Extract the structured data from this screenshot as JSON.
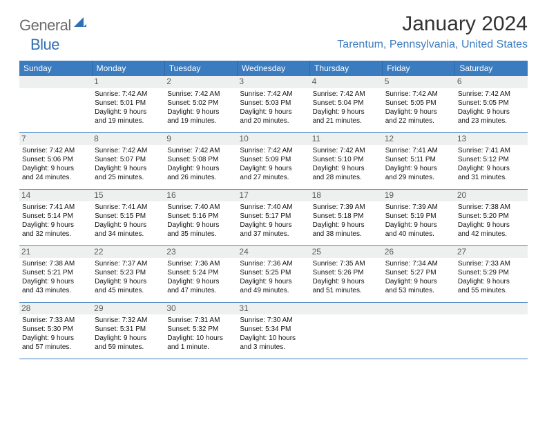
{
  "logo": {
    "part1": "General",
    "part2": "Blue"
  },
  "title": "January 2024",
  "location": "Tarentum, Pennsylvania, United States",
  "headers": [
    "Sunday",
    "Monday",
    "Tuesday",
    "Wednesday",
    "Thursday",
    "Friday",
    "Saturday"
  ],
  "colors": {
    "header_bg": "#3b7bbf",
    "header_text": "#ffffff",
    "accent": "#3b7bbf",
    "logo_gray": "#6b6b6b",
    "logo_blue": "#2f6fb3",
    "daynum_bg": "#eef0f0",
    "text": "#000000"
  },
  "weeks": [
    [
      null,
      {
        "n": "1",
        "r": "Sunrise: 7:42 AM",
        "s": "Sunset: 5:01 PM",
        "d1": "Daylight: 9 hours",
        "d2": "and 19 minutes."
      },
      {
        "n": "2",
        "r": "Sunrise: 7:42 AM",
        "s": "Sunset: 5:02 PM",
        "d1": "Daylight: 9 hours",
        "d2": "and 19 minutes."
      },
      {
        "n": "3",
        "r": "Sunrise: 7:42 AM",
        "s": "Sunset: 5:03 PM",
        "d1": "Daylight: 9 hours",
        "d2": "and 20 minutes."
      },
      {
        "n": "4",
        "r": "Sunrise: 7:42 AM",
        "s": "Sunset: 5:04 PM",
        "d1": "Daylight: 9 hours",
        "d2": "and 21 minutes."
      },
      {
        "n": "5",
        "r": "Sunrise: 7:42 AM",
        "s": "Sunset: 5:05 PM",
        "d1": "Daylight: 9 hours",
        "d2": "and 22 minutes."
      },
      {
        "n": "6",
        "r": "Sunrise: 7:42 AM",
        "s": "Sunset: 5:05 PM",
        "d1": "Daylight: 9 hours",
        "d2": "and 23 minutes."
      }
    ],
    [
      {
        "n": "7",
        "r": "Sunrise: 7:42 AM",
        "s": "Sunset: 5:06 PM",
        "d1": "Daylight: 9 hours",
        "d2": "and 24 minutes."
      },
      {
        "n": "8",
        "r": "Sunrise: 7:42 AM",
        "s": "Sunset: 5:07 PM",
        "d1": "Daylight: 9 hours",
        "d2": "and 25 minutes."
      },
      {
        "n": "9",
        "r": "Sunrise: 7:42 AM",
        "s": "Sunset: 5:08 PM",
        "d1": "Daylight: 9 hours",
        "d2": "and 26 minutes."
      },
      {
        "n": "10",
        "r": "Sunrise: 7:42 AM",
        "s": "Sunset: 5:09 PM",
        "d1": "Daylight: 9 hours",
        "d2": "and 27 minutes."
      },
      {
        "n": "11",
        "r": "Sunrise: 7:42 AM",
        "s": "Sunset: 5:10 PM",
        "d1": "Daylight: 9 hours",
        "d2": "and 28 minutes."
      },
      {
        "n": "12",
        "r": "Sunrise: 7:41 AM",
        "s": "Sunset: 5:11 PM",
        "d1": "Daylight: 9 hours",
        "d2": "and 29 minutes."
      },
      {
        "n": "13",
        "r": "Sunrise: 7:41 AM",
        "s": "Sunset: 5:12 PM",
        "d1": "Daylight: 9 hours",
        "d2": "and 31 minutes."
      }
    ],
    [
      {
        "n": "14",
        "r": "Sunrise: 7:41 AM",
        "s": "Sunset: 5:14 PM",
        "d1": "Daylight: 9 hours",
        "d2": "and 32 minutes."
      },
      {
        "n": "15",
        "r": "Sunrise: 7:41 AM",
        "s": "Sunset: 5:15 PM",
        "d1": "Daylight: 9 hours",
        "d2": "and 34 minutes."
      },
      {
        "n": "16",
        "r": "Sunrise: 7:40 AM",
        "s": "Sunset: 5:16 PM",
        "d1": "Daylight: 9 hours",
        "d2": "and 35 minutes."
      },
      {
        "n": "17",
        "r": "Sunrise: 7:40 AM",
        "s": "Sunset: 5:17 PM",
        "d1": "Daylight: 9 hours",
        "d2": "and 37 minutes."
      },
      {
        "n": "18",
        "r": "Sunrise: 7:39 AM",
        "s": "Sunset: 5:18 PM",
        "d1": "Daylight: 9 hours",
        "d2": "and 38 minutes."
      },
      {
        "n": "19",
        "r": "Sunrise: 7:39 AM",
        "s": "Sunset: 5:19 PM",
        "d1": "Daylight: 9 hours",
        "d2": "and 40 minutes."
      },
      {
        "n": "20",
        "r": "Sunrise: 7:38 AM",
        "s": "Sunset: 5:20 PM",
        "d1": "Daylight: 9 hours",
        "d2": "and 42 minutes."
      }
    ],
    [
      {
        "n": "21",
        "r": "Sunrise: 7:38 AM",
        "s": "Sunset: 5:21 PM",
        "d1": "Daylight: 9 hours",
        "d2": "and 43 minutes."
      },
      {
        "n": "22",
        "r": "Sunrise: 7:37 AM",
        "s": "Sunset: 5:23 PM",
        "d1": "Daylight: 9 hours",
        "d2": "and 45 minutes."
      },
      {
        "n": "23",
        "r": "Sunrise: 7:36 AM",
        "s": "Sunset: 5:24 PM",
        "d1": "Daylight: 9 hours",
        "d2": "and 47 minutes."
      },
      {
        "n": "24",
        "r": "Sunrise: 7:36 AM",
        "s": "Sunset: 5:25 PM",
        "d1": "Daylight: 9 hours",
        "d2": "and 49 minutes."
      },
      {
        "n": "25",
        "r": "Sunrise: 7:35 AM",
        "s": "Sunset: 5:26 PM",
        "d1": "Daylight: 9 hours",
        "d2": "and 51 minutes."
      },
      {
        "n": "26",
        "r": "Sunrise: 7:34 AM",
        "s": "Sunset: 5:27 PM",
        "d1": "Daylight: 9 hours",
        "d2": "and 53 minutes."
      },
      {
        "n": "27",
        "r": "Sunrise: 7:33 AM",
        "s": "Sunset: 5:29 PM",
        "d1": "Daylight: 9 hours",
        "d2": "and 55 minutes."
      }
    ],
    [
      {
        "n": "28",
        "r": "Sunrise: 7:33 AM",
        "s": "Sunset: 5:30 PM",
        "d1": "Daylight: 9 hours",
        "d2": "and 57 minutes."
      },
      {
        "n": "29",
        "r": "Sunrise: 7:32 AM",
        "s": "Sunset: 5:31 PM",
        "d1": "Daylight: 9 hours",
        "d2": "and 59 minutes."
      },
      {
        "n": "30",
        "r": "Sunrise: 7:31 AM",
        "s": "Sunset: 5:32 PM",
        "d1": "Daylight: 10 hours",
        "d2": "and 1 minute."
      },
      {
        "n": "31",
        "r": "Sunrise: 7:30 AM",
        "s": "Sunset: 5:34 PM",
        "d1": "Daylight: 10 hours",
        "d2": "and 3 minutes."
      },
      null,
      null,
      null
    ]
  ]
}
